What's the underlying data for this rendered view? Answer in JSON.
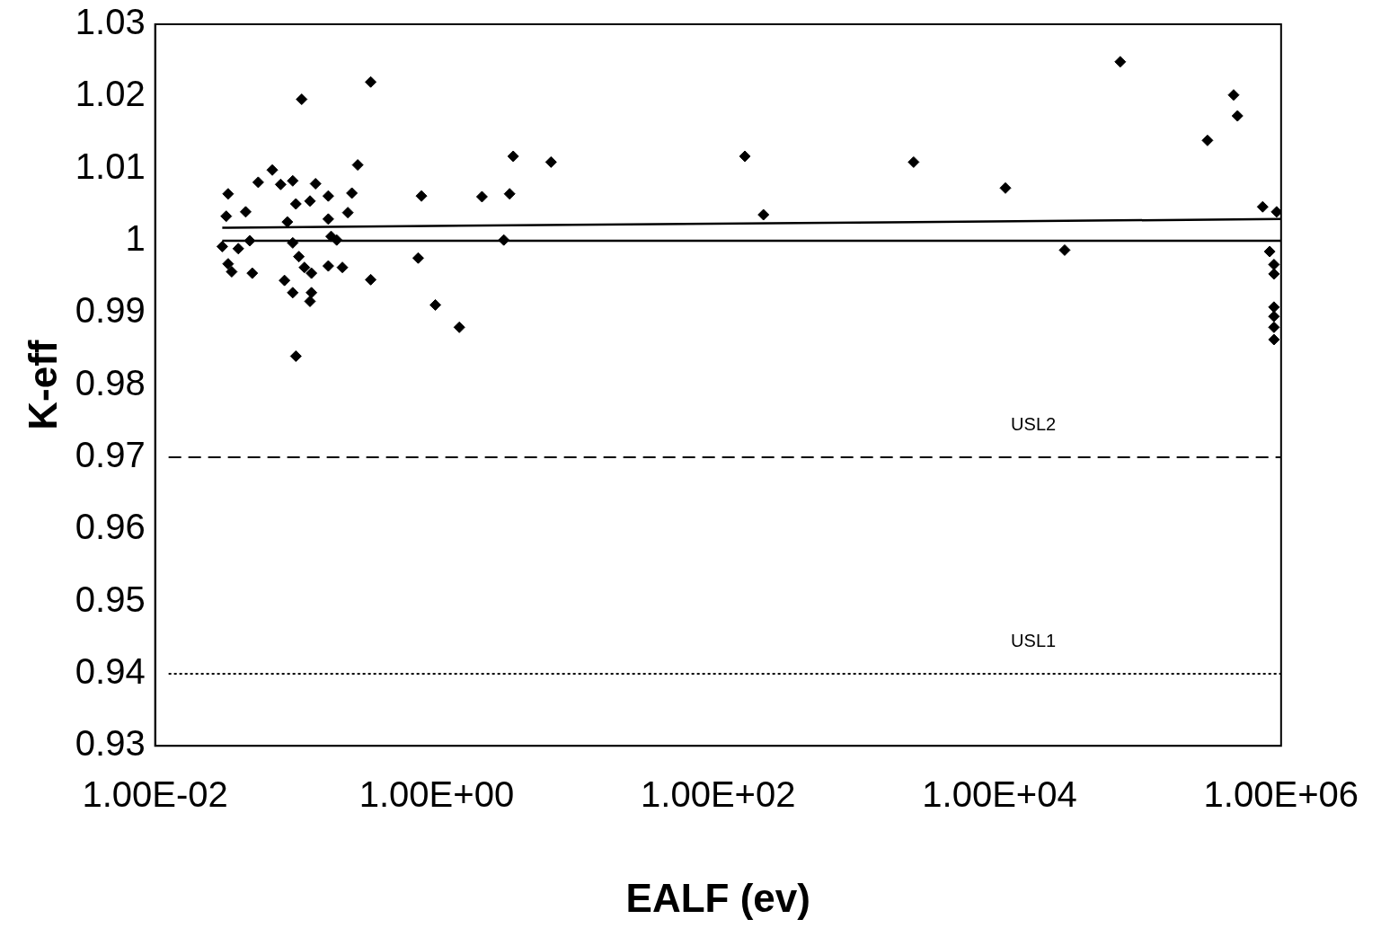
{
  "chart_data": {
    "type": "scatter",
    "xlabel": "EALF (ev)",
    "ylabel": "K-eff",
    "log": "x",
    "grid": false,
    "legend": false,
    "marker": "diamond",
    "xlim": [
      0.01,
      1000000
    ],
    "xticks": [
      {
        "value": 0.01,
        "label": "1.00E-02"
      },
      {
        "value": 1,
        "label": "1.00E+00"
      },
      {
        "value": 100,
        "label": "1.00E+02"
      },
      {
        "value": 10000,
        "label": "1.00E+04"
      },
      {
        "value": 1000000,
        "label": "1.00E+06"
      }
    ],
    "ylim": [
      0.93,
      1.03
    ],
    "yticks": [
      0.93,
      0.94,
      0.95,
      0.96,
      0.97,
      0.98,
      0.99,
      1,
      1.01,
      1.02,
      1.03
    ],
    "ref_lines": [
      {
        "axis": "y",
        "value": 0.97,
        "label": "USL2",
        "line_style": "dashed",
        "color": "#000000"
      },
      {
        "axis": "y",
        "value": 0.94,
        "label": "USL1",
        "line_style": "dotted",
        "color": "#000000"
      }
    ],
    "series": [
      {
        "color": "#000000",
        "x": [
          0.033,
          0.032,
          0.03,
          0.033,
          0.035,
          0.039,
          0.044,
          0.049,
          0.047,
          0.054,
          0.068,
          0.078,
          0.095,
          0.087,
          0.083,
          0.095,
          0.1,
          0.11,
          0.1,
          0.095,
          0.105,
          0.115,
          0.126,
          0.126,
          0.129,
          0.129,
          0.138,
          0.17,
          0.17,
          0.17,
          0.178,
          0.195,
          0.214,
          0.234,
          0.25,
          0.275,
          0.34,
          0.34,
          0.78,
          0.74,
          0.98,
          1.45,
          2.1,
          3.3,
          3.5,
          3.0,
          6.5,
          155,
          210,
          2450,
          11000,
          29000,
          72000,
          300000,
          460000,
          490000,
          740000,
          930000,
          830000,
          890000,
          890000,
          890000,
          890000,
          890000,
          890000
        ],
        "values": [
          1.0065,
          1.0034,
          0.9992,
          0.9968,
          0.9957,
          0.9989,
          1.004,
          0.9955,
          1.0,
          1.0081,
          1.0098,
          1.0078,
          1.0083,
          1.0026,
          0.9945,
          0.9928,
          0.984,
          1.0196,
          1.0051,
          0.9997,
          0.9978,
          0.9963,
          1.0055,
          0.9916,
          0.9928,
          0.9955,
          1.0079,
          1.0062,
          1.003,
          0.9965,
          1.0006,
          1.0001,
          0.9963,
          1.0039,
          1.0066,
          1.0105,
          0.9946,
          1.022,
          1.0062,
          0.9976,
          0.9911,
          0.988,
          1.0061,
          1.0065,
          1.0117,
          1.0001,
          1.0109,
          1.0117,
          1.0036,
          1.0109,
          1.0073,
          0.9987,
          1.0248,
          1.0139,
          1.0202,
          1.0173,
          1.0047,
          1.004,
          0.9985,
          0.9967,
          0.9954,
          0.9908,
          0.9895,
          0.988,
          0.9863
        ]
      },
      {
        "type": "line",
        "color": "#000000",
        "marker": "none",
        "line_style": "solid",
        "x": [
          0.03,
          1000000
        ],
        "values": [
          1.0018,
          1.003
        ]
      },
      {
        "type": "line",
        "color": "#000000",
        "marker": "none",
        "line_style": "solid",
        "x": [
          0.03,
          1000000
        ],
        "values": [
          1.0,
          1.0
        ]
      }
    ]
  }
}
